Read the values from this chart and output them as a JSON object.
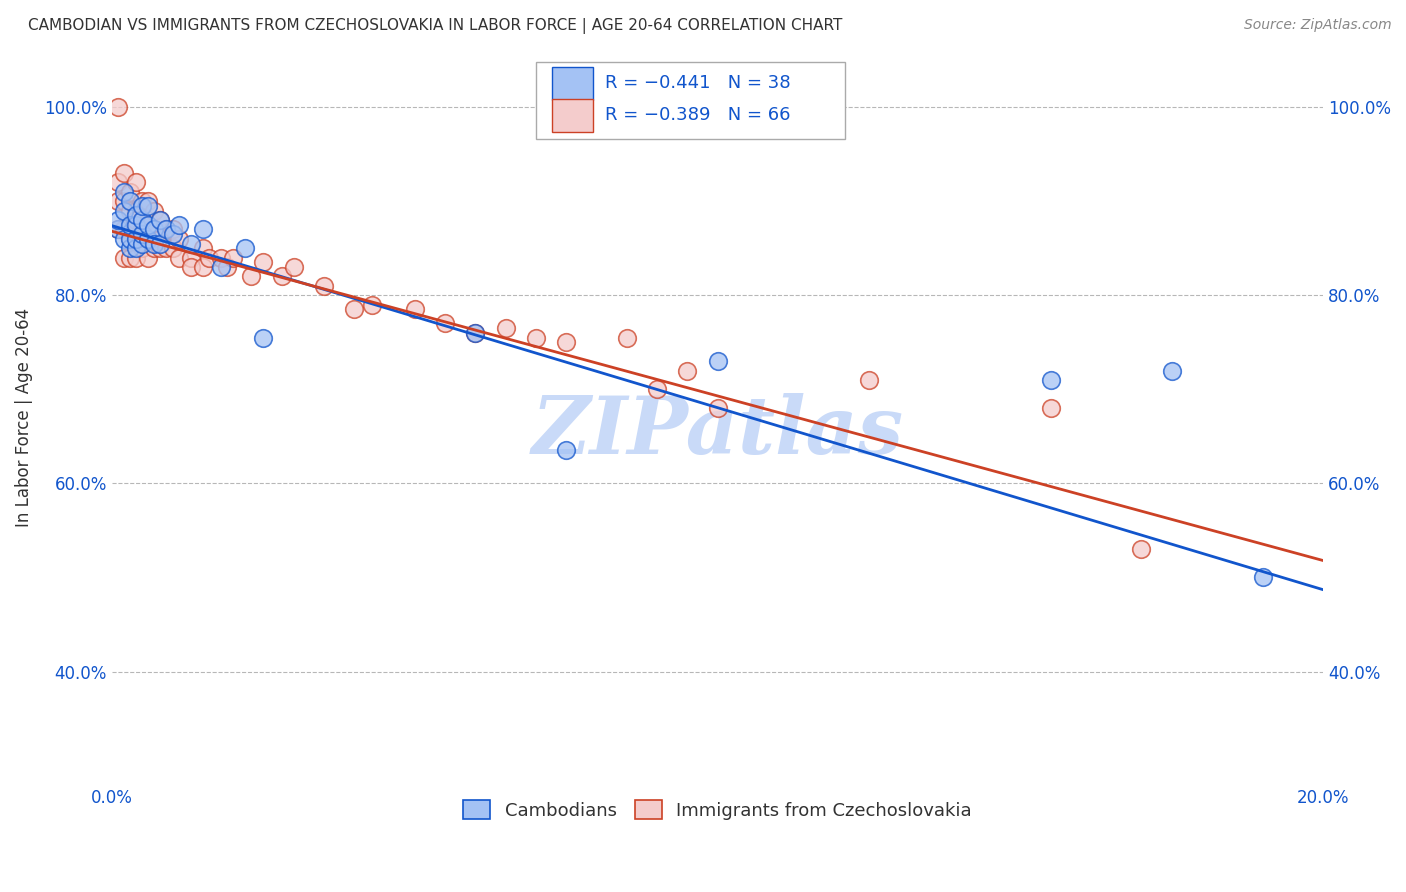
{
  "title": "CAMBODIAN VS IMMIGRANTS FROM CZECHOSLOVAKIA IN LABOR FORCE | AGE 20-64 CORRELATION CHART",
  "source": "Source: ZipAtlas.com",
  "ylabel": "In Labor Force | Age 20-64",
  "xlim": [
    0.0,
    0.2
  ],
  "ylim": [
    0.28,
    1.06
  ],
  "xticks": [
    0.0,
    0.02,
    0.04,
    0.06,
    0.08,
    0.1,
    0.12,
    0.14,
    0.16,
    0.18,
    0.2
  ],
  "xtick_labels": [
    "0.0%",
    "",
    "",
    "",
    "",
    "",
    "",
    "",
    "",
    "",
    "20.0%"
  ],
  "yticks": [
    0.4,
    0.6,
    0.8,
    1.0
  ],
  "ytick_labels": [
    "40.0%",
    "60.0%",
    "80.0%",
    "100.0%"
  ],
  "legend_r1": "R = −0.441",
  "legend_n1": "N = 38",
  "legend_r2": "R = −0.389",
  "legend_n2": "N = 66",
  "color_blue": "#a4c2f4",
  "color_pink": "#f4cccc",
  "color_blue_line": "#1155cc",
  "color_pink_line": "#cc4125",
  "watermark": "ZIPatlas",
  "watermark_color": "#c9daf8",
  "background_color": "#ffffff",
  "grid_color": "#b7b7b7",
  "cambodian_x": [
    0.001,
    0.001,
    0.002,
    0.002,
    0.002,
    0.003,
    0.003,
    0.003,
    0.003,
    0.004,
    0.004,
    0.004,
    0.004,
    0.005,
    0.005,
    0.005,
    0.005,
    0.006,
    0.006,
    0.006,
    0.007,
    0.007,
    0.008,
    0.008,
    0.009,
    0.01,
    0.011,
    0.013,
    0.015,
    0.018,
    0.022,
    0.025,
    0.06,
    0.075,
    0.1,
    0.155,
    0.175,
    0.19
  ],
  "cambodian_y": [
    0.87,
    0.88,
    0.86,
    0.89,
    0.91,
    0.85,
    0.86,
    0.875,
    0.9,
    0.85,
    0.86,
    0.875,
    0.885,
    0.855,
    0.865,
    0.88,
    0.895,
    0.86,
    0.875,
    0.895,
    0.87,
    0.855,
    0.88,
    0.855,
    0.87,
    0.865,
    0.875,
    0.855,
    0.87,
    0.83,
    0.85,
    0.755,
    0.76,
    0.635,
    0.73,
    0.71,
    0.72,
    0.5
  ],
  "czech_x": [
    0.001,
    0.001,
    0.001,
    0.001,
    0.002,
    0.002,
    0.002,
    0.002,
    0.003,
    0.003,
    0.003,
    0.003,
    0.003,
    0.004,
    0.004,
    0.004,
    0.004,
    0.004,
    0.005,
    0.005,
    0.005,
    0.005,
    0.006,
    0.006,
    0.006,
    0.006,
    0.007,
    0.007,
    0.007,
    0.008,
    0.008,
    0.008,
    0.009,
    0.009,
    0.01,
    0.01,
    0.011,
    0.011,
    0.013,
    0.013,
    0.015,
    0.015,
    0.016,
    0.018,
    0.019,
    0.02,
    0.023,
    0.025,
    0.028,
    0.03,
    0.035,
    0.04,
    0.043,
    0.05,
    0.055,
    0.06,
    0.065,
    0.07,
    0.075,
    0.085,
    0.09,
    0.095,
    0.1,
    0.125,
    0.155,
    0.17
  ],
  "czech_y": [
    1.0,
    0.92,
    0.9,
    0.87,
    0.93,
    0.9,
    0.87,
    0.84,
    0.91,
    0.89,
    0.87,
    0.86,
    0.84,
    0.92,
    0.89,
    0.88,
    0.86,
    0.84,
    0.9,
    0.88,
    0.87,
    0.85,
    0.9,
    0.88,
    0.86,
    0.84,
    0.89,
    0.87,
    0.85,
    0.88,
    0.86,
    0.85,
    0.87,
    0.85,
    0.87,
    0.85,
    0.86,
    0.84,
    0.84,
    0.83,
    0.85,
    0.83,
    0.84,
    0.84,
    0.83,
    0.84,
    0.82,
    0.835,
    0.82,
    0.83,
    0.81,
    0.785,
    0.79,
    0.785,
    0.77,
    0.76,
    0.765,
    0.755,
    0.75,
    0.755,
    0.7,
    0.72,
    0.68,
    0.71,
    0.68,
    0.53
  ],
  "line_blue_y0": 0.874,
  "line_blue_y1": 0.487,
  "line_pink_y0": 0.868,
  "line_pink_y1": 0.518
}
